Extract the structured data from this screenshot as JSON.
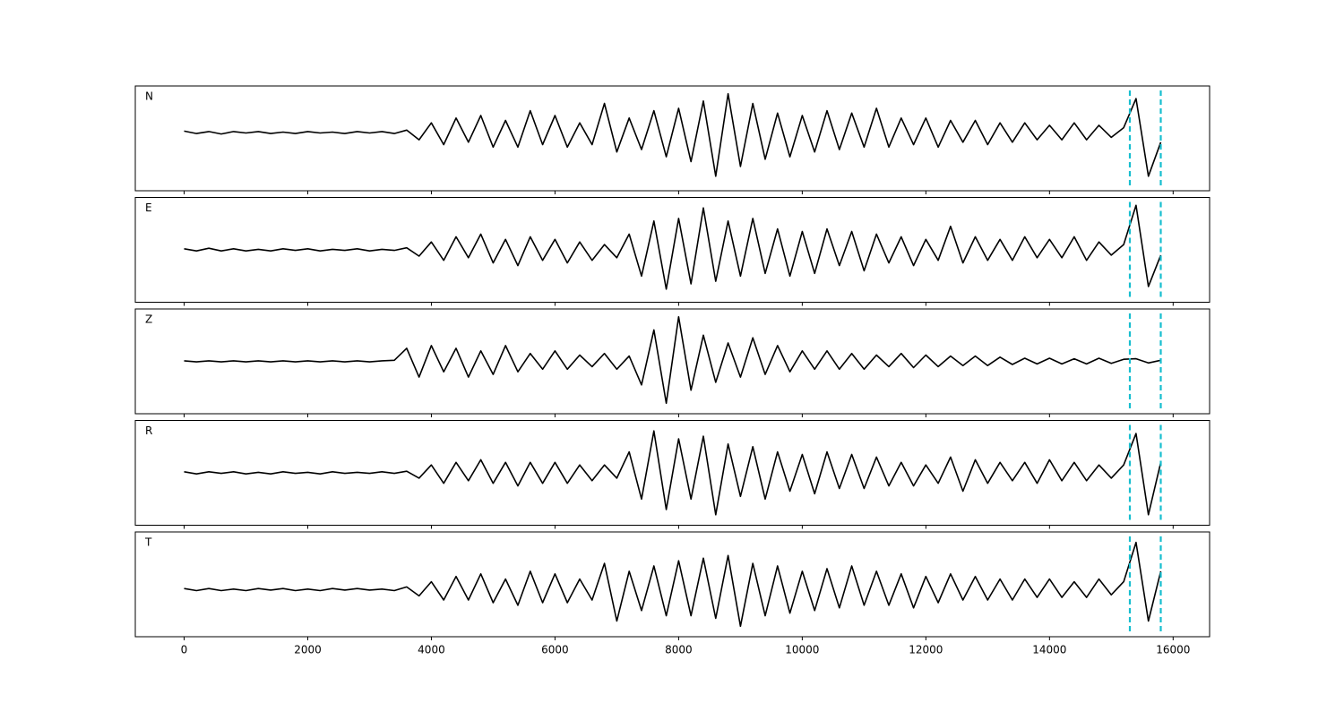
{
  "chart_data": {
    "type": "line",
    "x": [
      0,
      200,
      400,
      600,
      800,
      1000,
      1200,
      1400,
      1600,
      1800,
      2000,
      2200,
      2400,
      2600,
      2800,
      3000,
      3200,
      3400,
      3600,
      3800,
      4000,
      4200,
      4400,
      4600,
      4800,
      5000,
      5200,
      5400,
      5600,
      5800,
      6000,
      6200,
      6400,
      6600,
      6800,
      7000,
      7200,
      7400,
      7600,
      7800,
      8000,
      8200,
      8400,
      8600,
      8800,
      9000,
      9200,
      9400,
      9600,
      9800,
      10000,
      10200,
      10400,
      10600,
      10800,
      11000,
      11200,
      11400,
      11600,
      11800,
      12000,
      12200,
      12400,
      12600,
      12800,
      13000,
      13200,
      13400,
      13600,
      13800,
      14000,
      14200,
      14400,
      14600,
      14800,
      15000,
      15200,
      15400,
      15600,
      15800
    ],
    "series": [
      {
        "name": "N",
        "color": "#000000",
        "ylim": [
          -1.2,
          0.96
        ],
        "values": [
          0.03,
          -0.02,
          0.02,
          -0.03,
          0.02,
          -0.01,
          0.02,
          -0.02,
          0.01,
          -0.02,
          0.02,
          -0.01,
          0.01,
          -0.02,
          0.02,
          -0.01,
          0.02,
          -0.02,
          0.05,
          -0.15,
          0.2,
          -0.25,
          0.3,
          -0.2,
          0.35,
          -0.3,
          0.25,
          -0.3,
          0.45,
          -0.25,
          0.35,
          -0.3,
          0.2,
          -0.25,
          0.6,
          -0.4,
          0.3,
          -0.35,
          0.45,
          -0.5,
          0.5,
          -0.6,
          0.65,
          -0.9,
          0.8,
          -0.7,
          0.6,
          -0.55,
          0.4,
          -0.5,
          0.35,
          -0.4,
          0.45,
          -0.35,
          0.4,
          -0.3,
          0.5,
          -0.3,
          0.3,
          -0.25,
          0.3,
          -0.3,
          0.25,
          -0.2,
          0.25,
          -0.25,
          0.2,
          -0.2,
          0.2,
          -0.15,
          0.15,
          -0.15,
          0.2,
          -0.15,
          0.15,
          -0.1,
          0.1,
          0.7,
          -0.9,
          -0.2
        ]
      },
      {
        "name": "E",
        "color": "#000000",
        "ylim": [
          -1,
          1
        ],
        "values": [
          0.02,
          -0.02,
          0.03,
          -0.02,
          0.02,
          -0.02,
          0.01,
          -0.02,
          0.02,
          -0.01,
          0.02,
          -0.02,
          0.01,
          -0.01,
          0.02,
          -0.02,
          0.01,
          -0.01,
          0.04,
          -0.12,
          0.15,
          -0.2,
          0.25,
          -0.15,
          0.3,
          -0.25,
          0.2,
          -0.3,
          0.25,
          -0.2,
          0.2,
          -0.25,
          0.15,
          -0.2,
          0.1,
          -0.15,
          0.3,
          -0.5,
          0.55,
          -0.75,
          0.6,
          -0.65,
          0.8,
          -0.6,
          0.55,
          -0.5,
          0.6,
          -0.45,
          0.4,
          -0.5,
          0.35,
          -0.45,
          0.4,
          -0.3,
          0.35,
          -0.4,
          0.3,
          -0.25,
          0.25,
          -0.3,
          0.2,
          -0.2,
          0.45,
          -0.25,
          0.25,
          -0.2,
          0.2,
          -0.2,
          0.25,
          -0.15,
          0.2,
          -0.15,
          0.25,
          -0.2,
          0.15,
          -0.1,
          0.1,
          0.85,
          -0.7,
          -0.1
        ]
      },
      {
        "name": "Z",
        "color": "#000000",
        "ylim": [
          -1,
          1
        ],
        "values": [
          0.01,
          -0.01,
          0.01,
          -0.01,
          0.01,
          -0.01,
          0.01,
          -0.01,
          0.01,
          -0.01,
          0.01,
          -0.01,
          0.01,
          -0.01,
          0.01,
          -0.01,
          0.01,
          0.02,
          0.25,
          -0.3,
          0.3,
          -0.2,
          0.25,
          -0.3,
          0.2,
          -0.25,
          0.3,
          -0.2,
          0.15,
          -0.15,
          0.2,
          -0.15,
          0.12,
          -0.1,
          0.15,
          -0.15,
          0.1,
          -0.45,
          0.6,
          -0.8,
          0.85,
          -0.55,
          0.5,
          -0.4,
          0.35,
          -0.3,
          0.45,
          -0.25,
          0.3,
          -0.2,
          0.2,
          -0.15,
          0.2,
          -0.15,
          0.15,
          -0.15,
          0.12,
          -0.1,
          0.15,
          -0.12,
          0.12,
          -0.1,
          0.1,
          -0.08,
          0.1,
          -0.08,
          0.08,
          -0.06,
          0.06,
          -0.05,
          0.06,
          -0.05,
          0.05,
          -0.05,
          0.06,
          -0.04,
          0.04,
          0.05,
          -0.03,
          0.02
        ]
      },
      {
        "name": "R",
        "color": "#000000",
        "ylim": [
          -1,
          1
        ],
        "values": [
          0.02,
          -0.02,
          0.02,
          -0.01,
          0.02,
          -0.02,
          0.01,
          -0.02,
          0.02,
          -0.01,
          0.01,
          -0.02,
          0.02,
          -0.01,
          0.01,
          -0.01,
          0.02,
          -0.01,
          0.03,
          -0.1,
          0.15,
          -0.2,
          0.2,
          -0.15,
          0.25,
          -0.2,
          0.2,
          -0.25,
          0.2,
          -0.2,
          0.2,
          -0.2,
          0.15,
          -0.15,
          0.15,
          -0.1,
          0.4,
          -0.5,
          0.8,
          -0.7,
          0.65,
          -0.5,
          0.7,
          -0.8,
          0.55,
          -0.45,
          0.5,
          -0.5,
          0.4,
          -0.35,
          0.35,
          -0.4,
          0.4,
          -0.3,
          0.35,
          -0.3,
          0.3,
          -0.25,
          0.2,
          -0.25,
          0.15,
          -0.2,
          0.3,
          -0.35,
          0.25,
          -0.2,
          0.2,
          -0.15,
          0.2,
          -0.2,
          0.25,
          -0.15,
          0.2,
          -0.15,
          0.15,
          -0.1,
          0.15,
          0.75,
          -0.8,
          0.2
        ]
      },
      {
        "name": "T",
        "color": "#000000",
        "ylim": [
          -0.9,
          1.1
        ],
        "values": [
          0.02,
          -0.02,
          0.02,
          -0.02,
          0.01,
          -0.02,
          0.02,
          -0.01,
          0.02,
          -0.02,
          0.01,
          -0.02,
          0.02,
          -0.01,
          0.02,
          -0.01,
          0.01,
          -0.02,
          0.05,
          -0.12,
          0.15,
          -0.2,
          0.25,
          -0.2,
          0.3,
          -0.25,
          0.2,
          -0.3,
          0.35,
          -0.25,
          0.3,
          -0.25,
          0.2,
          -0.2,
          0.5,
          -0.6,
          0.35,
          -0.4,
          0.45,
          -0.5,
          0.55,
          -0.5,
          0.6,
          -0.55,
          0.65,
          -0.7,
          0.5,
          -0.5,
          0.45,
          -0.45,
          0.35,
          -0.4,
          0.4,
          -0.35,
          0.45,
          -0.3,
          0.35,
          -0.3,
          0.3,
          -0.35,
          0.25,
          -0.25,
          0.3,
          -0.2,
          0.25,
          -0.2,
          0.2,
          -0.2,
          0.2,
          -0.15,
          0.2,
          -0.15,
          0.15,
          -0.15,
          0.2,
          -0.1,
          0.15,
          0.9,
          -0.6,
          0.35
        ]
      }
    ],
    "vlines": [
      15300,
      15800
    ],
    "vline_color": "#17becf",
    "xlim": [
      -790,
      16590
    ],
    "xticks": [
      0,
      2000,
      4000,
      6000,
      8000,
      10000,
      12000,
      14000,
      16000
    ]
  }
}
